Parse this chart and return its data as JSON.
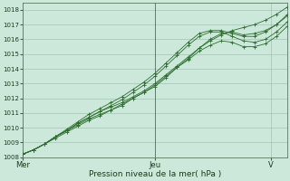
{
  "title": "",
  "xlabel": "Pression niveau de la mer( hPa )",
  "ylabel": "",
  "bg_color": "#cce8da",
  "plot_bg_color": "#cce8da",
  "grid_color": "#99bbaa",
  "line_color": "#2d6e2d",
  "marker_color": "#2d6e2d",
  "xlim": [
    0,
    96
  ],
  "ylim": [
    1008,
    1018.5
  ],
  "yticks": [
    1008,
    1009,
    1010,
    1011,
    1012,
    1013,
    1014,
    1015,
    1016,
    1017,
    1018
  ],
  "xtick_positions": [
    0,
    48,
    90
  ],
  "xtick_labels": [
    "Mer",
    "Jeu",
    "V"
  ],
  "vline_x": 48,
  "series": [
    [
      0,
      1008.2,
      6,
      1009.0,
      12,
      1009.8,
      18,
      1010.5,
      24,
      1011.1,
      30,
      1011.6,
      36,
      1012.5,
      42,
      1013.6,
      48,
      1014.8,
      54,
      1015.6,
      60,
      1016.4,
      66,
      1016.5,
      72,
      1016.6,
      78,
      1016.9,
      84,
      1017.3,
      90,
      1017.8,
      96,
      1018.2
    ],
    [
      0,
      1008.2,
      6,
      1009.0,
      12,
      1009.8,
      18,
      1010.5,
      24,
      1011.0,
      30,
      1011.4,
      36,
      1012.1,
      42,
      1013.0,
      48,
      1014.3,
      54,
      1015.3,
      60,
      1016.0,
      66,
      1016.4,
      72,
      1015.8,
      78,
      1016.0,
      84,
      1016.6,
      90,
      1017.1,
      96,
      1017.9
    ],
    [
      0,
      1008.2,
      6,
      1009.0,
      12,
      1009.8,
      18,
      1010.5,
      24,
      1011.0,
      30,
      1011.5,
      36,
      1012.3,
      42,
      1013.3,
      48,
      1014.0,
      54,
      1015.0,
      60,
      1015.5,
      66,
      1015.5,
      72,
      1015.3,
      78,
      1015.6,
      84,
      1016.2,
      90,
      1016.8,
      96,
      1017.6
    ],
    [
      0,
      1008.2,
      6,
      1009.0,
      12,
      1009.8,
      18,
      1010.5,
      24,
      1011.0,
      30,
      1011.5,
      36,
      1012.3,
      42,
      1013.3,
      48,
      1014.5,
      54,
      1015.8,
      60,
      1016.6,
      66,
      1016.5,
      72,
      1015.7,
      78,
      1015.5,
      84,
      1015.9,
      90,
      1016.5,
      96,
      1017.3
    ],
    [
      0,
      1008.2,
      6,
      1009.0,
      12,
      1009.8,
      18,
      1010.5,
      24,
      1011.1,
      30,
      1011.7,
      36,
      1012.7,
      42,
      1013.8,
      48,
      1015.1,
      54,
      1016.0,
      60,
      1016.5,
      66,
      1016.5,
      72,
      1016.1,
      78,
      1016.2,
      84,
      1016.7,
      90,
      1017.2,
      96,
      1018.0
    ]
  ],
  "series2": [
    [
      0,
      1008.2,
      4,
      1008.5,
      8,
      1008.9,
      12,
      1009.4,
      16,
      1009.8,
      20,
      1010.3,
      24,
      1010.7,
      28,
      1011.1,
      32,
      1011.4,
      36,
      1011.7,
      40,
      1012.1,
      44,
      1012.5,
      48,
      1013.0,
      52,
      1013.6,
      56,
      1014.2,
      60,
      1014.8,
      64,
      1015.4,
      68,
      1015.9,
      72,
      1016.3,
      76,
      1016.6,
      80,
      1016.8,
      84,
      1017.0,
      88,
      1017.3,
      92,
      1017.7,
      96,
      1018.2
    ],
    [
      0,
      1008.2,
      4,
      1008.5,
      8,
      1008.9,
      12,
      1009.4,
      16,
      1009.8,
      20,
      1010.2,
      24,
      1010.6,
      28,
      1010.9,
      32,
      1011.2,
      36,
      1011.5,
      40,
      1012.0,
      44,
      1012.4,
      48,
      1012.8,
      52,
      1013.4,
      56,
      1014.1,
      60,
      1014.7,
      64,
      1015.4,
      68,
      1016.0,
      72,
      1016.4,
      76,
      1016.5,
      80,
      1016.3,
      84,
      1016.4,
      88,
      1016.6,
      92,
      1017.0,
      96,
      1017.6
    ],
    [
      0,
      1008.2,
      4,
      1008.5,
      8,
      1008.9,
      12,
      1009.3,
      16,
      1009.7,
      20,
      1010.1,
      24,
      1010.5,
      28,
      1010.8,
      32,
      1011.2,
      36,
      1011.6,
      40,
      1012.0,
      44,
      1012.4,
      48,
      1012.9,
      52,
      1013.5,
      56,
      1014.1,
      60,
      1014.6,
      64,
      1015.2,
      68,
      1015.6,
      72,
      1015.9,
      76,
      1015.8,
      80,
      1015.5,
      84,
      1015.5,
      88,
      1015.7,
      92,
      1016.2,
      96,
      1016.9
    ],
    [
      0,
      1008.2,
      4,
      1008.5,
      8,
      1008.9,
      12,
      1009.4,
      16,
      1009.8,
      20,
      1010.3,
      24,
      1010.7,
      28,
      1011.1,
      32,
      1011.5,
      36,
      1011.9,
      40,
      1012.4,
      44,
      1012.9,
      48,
      1013.5,
      52,
      1014.2,
      56,
      1014.9,
      60,
      1015.6,
      64,
      1016.2,
      68,
      1016.5,
      72,
      1016.5,
      76,
      1016.2,
      80,
      1015.9,
      84,
      1015.8,
      88,
      1016.0,
      92,
      1016.5,
      96,
      1017.2
    ],
    [
      0,
      1008.2,
      4,
      1008.5,
      8,
      1008.9,
      12,
      1009.4,
      16,
      1009.9,
      20,
      1010.4,
      24,
      1010.9,
      28,
      1011.3,
      32,
      1011.7,
      36,
      1012.1,
      40,
      1012.6,
      44,
      1013.1,
      48,
      1013.7,
      52,
      1014.4,
      56,
      1015.1,
      60,
      1015.8,
      64,
      1016.4,
      68,
      1016.6,
      72,
      1016.6,
      76,
      1016.4,
      80,
      1016.2,
      84,
      1016.2,
      88,
      1016.5,
      92,
      1017.0,
      96,
      1017.7
    ]
  ]
}
